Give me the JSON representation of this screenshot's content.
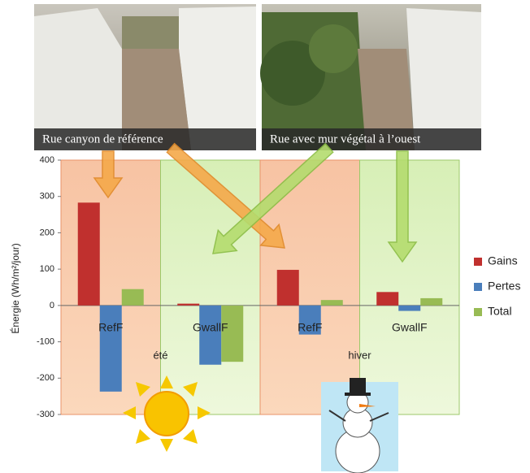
{
  "chart_data": {
    "type": "bar",
    "annotations": [
      "Rue canyon de référence",
      "Rue avec mur végétal à l’ouest"
    ],
    "y_label": "Énergie (Wh/m²/jour)",
    "categories": [
      "RefF",
      "GwallF",
      "RefF",
      "GwallF"
    ],
    "seasons": [
      "été",
      "hiver"
    ],
    "series": [
      {
        "name": "Gains",
        "color": "#c0302e",
        "values": [
          283,
          5,
          98,
          37
        ]
      },
      {
        "name": "Pertes",
        "color": "#4a7ebb",
        "values": [
          -237,
          -163,
          -80,
          -15
        ]
      },
      {
        "name": "Total",
        "color": "#98bb54",
        "values": [
          45,
          -155,
          15,
          20
        ]
      }
    ],
    "ylim": [
      -300,
      400
    ],
    "yticks": [
      -300,
      -200,
      -100,
      0,
      100,
      200,
      300,
      400
    ]
  }
}
